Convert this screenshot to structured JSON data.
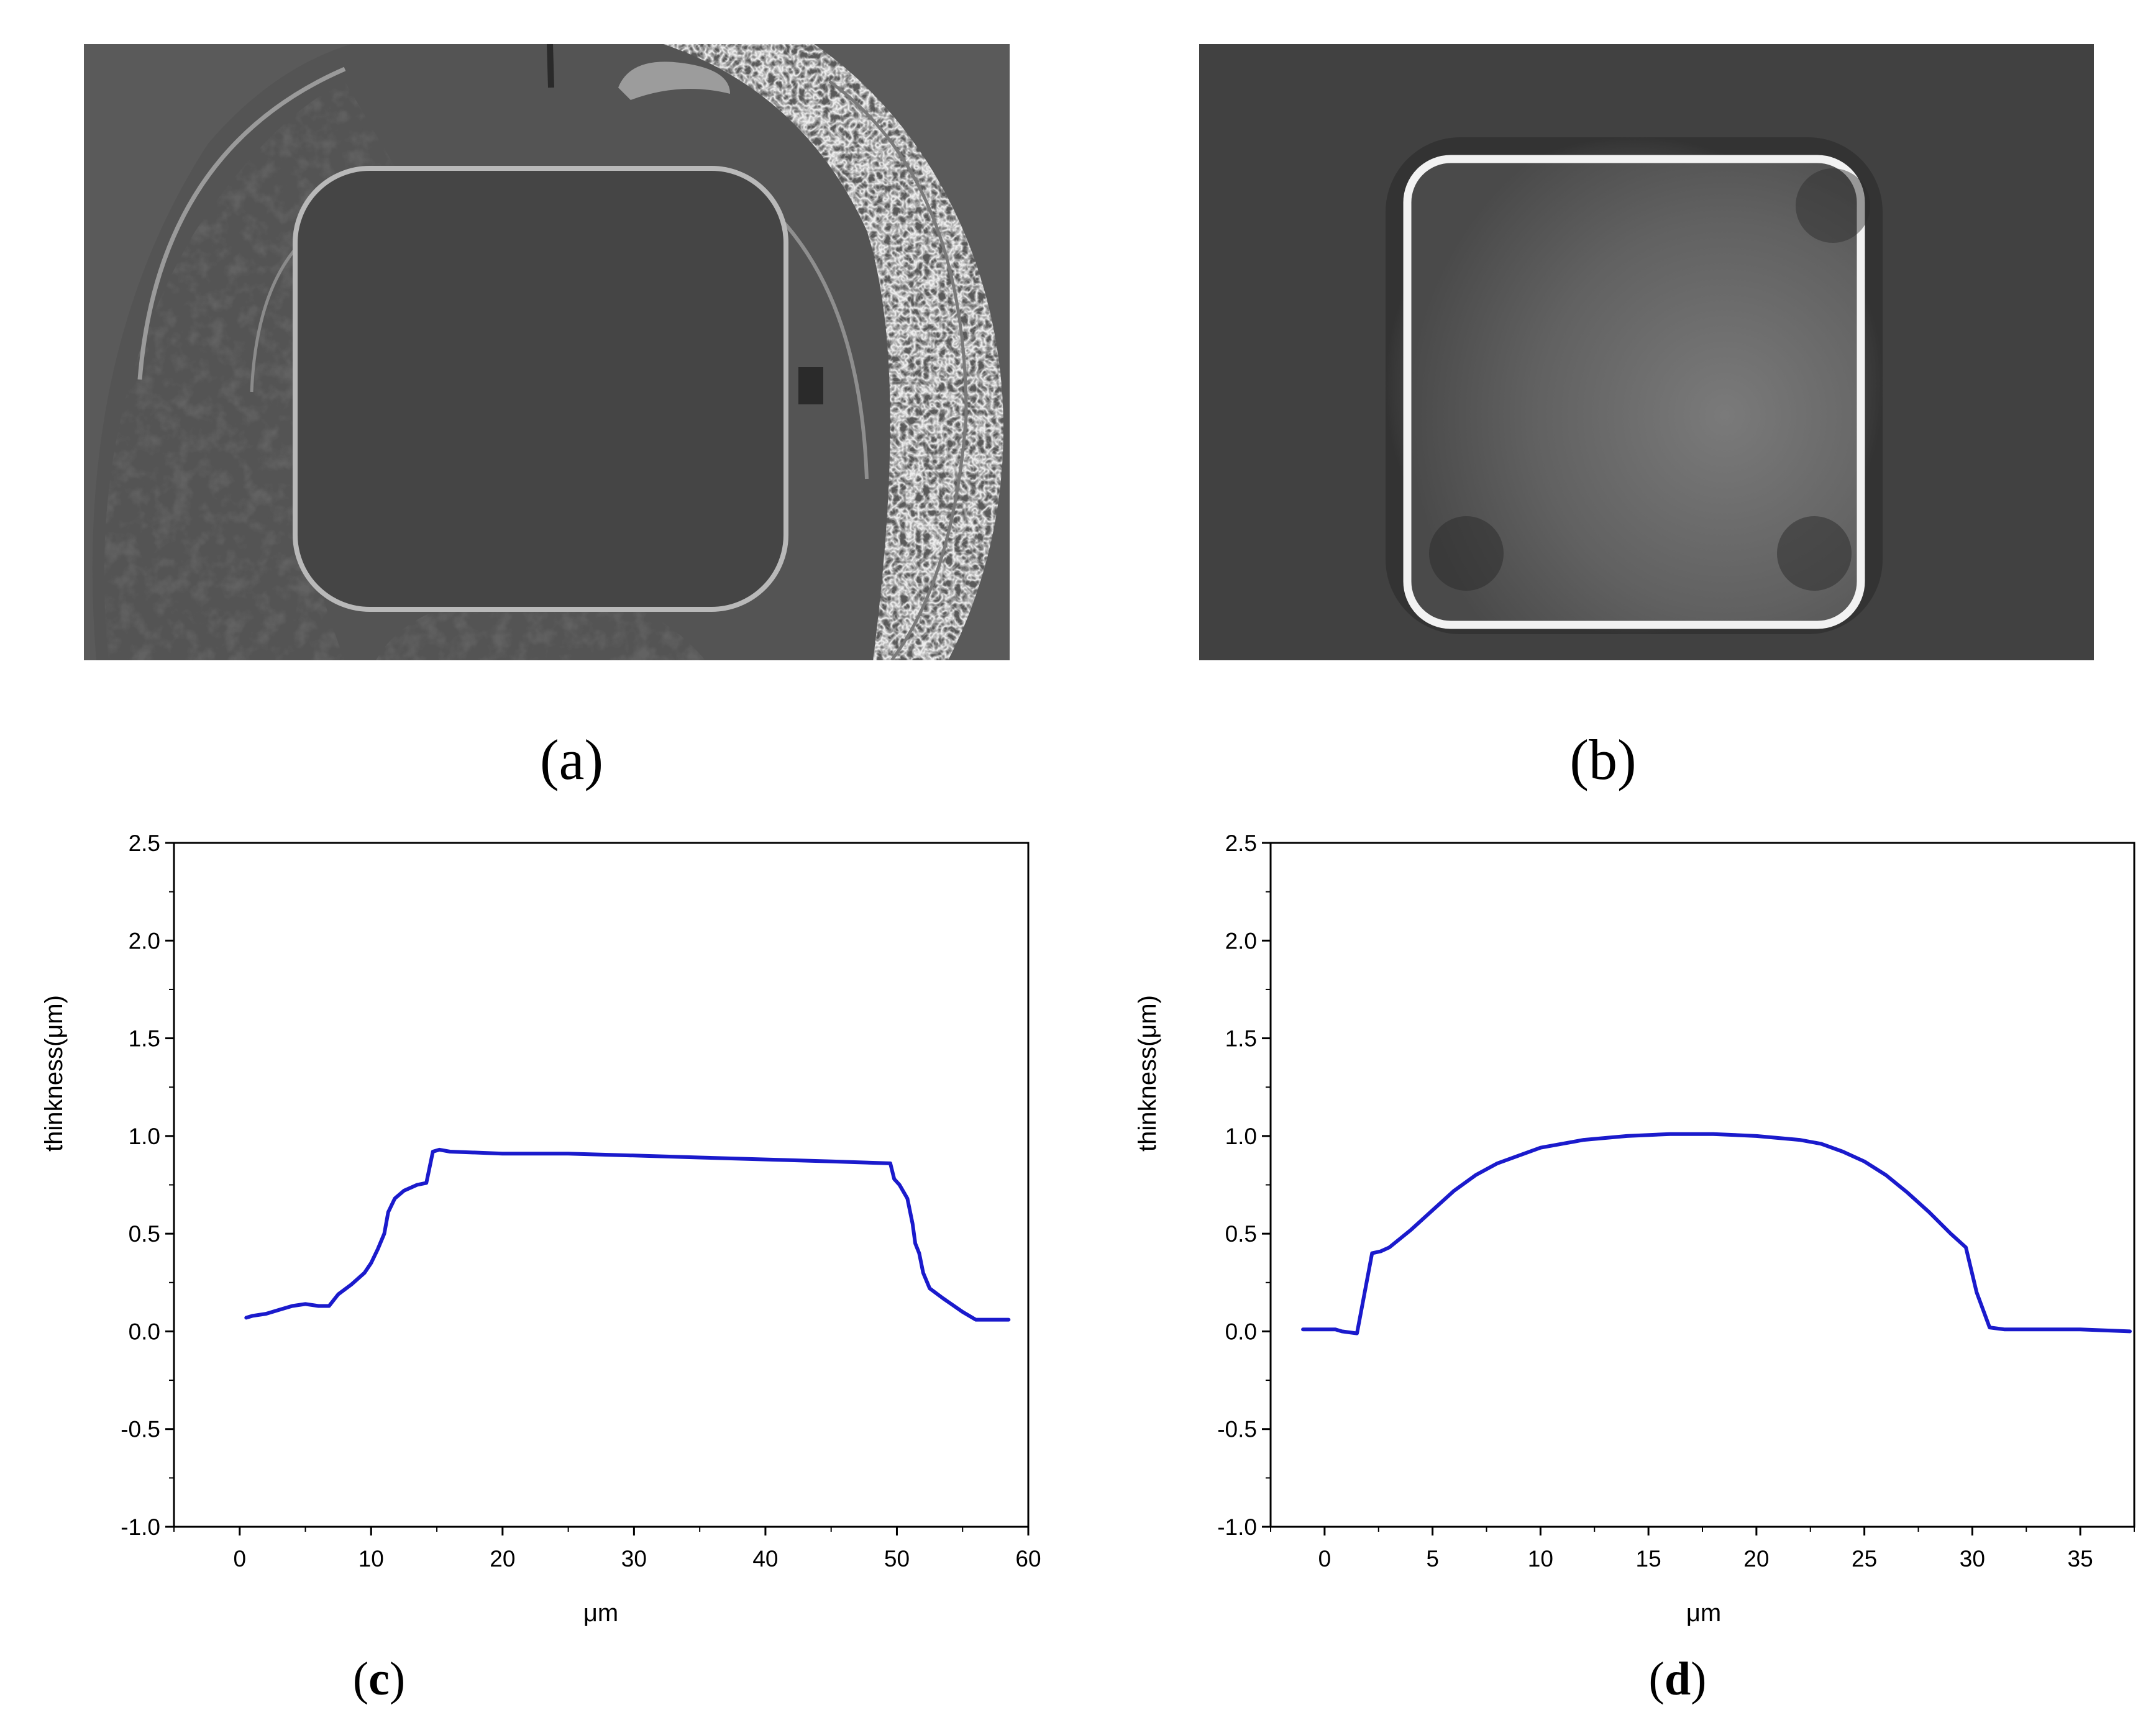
{
  "figure": {
    "captions": {
      "a": "(a)",
      "b": "(b)",
      "c_open": "(",
      "c_letter": "c",
      "c_close": ")",
      "d_open": "(",
      "d_letter": "d",
      "d_close": ")"
    }
  },
  "photos": {
    "a": {
      "background": "#5a5a5a",
      "pad_color": "#454545",
      "rim_color": "#b9b9b9",
      "texture_color": "#1f1f1f"
    },
    "b": {
      "background": "#414141",
      "pad_color": "#6a6a6a",
      "rim_color": "#f2f2f2"
    }
  },
  "chart_data": [
    {
      "type": "line",
      "title": "",
      "xlabel": "μm",
      "ylabel": "thinkness(μm)",
      "xlim": [
        -5,
        60
      ],
      "ylim": [
        -1.0,
        2.5
      ],
      "xticks": [
        0,
        10,
        20,
        30,
        40,
        50,
        60
      ],
      "yticks": [
        -1.0,
        -0.5,
        0.0,
        0.5,
        1.0,
        1.5,
        2.0,
        2.5
      ],
      "xtick_labels": [
        "0",
        "10",
        "20",
        "30",
        "40",
        "50",
        "60"
      ],
      "ytick_labels": [
        "-1.0",
        "-0.5",
        "0.0",
        "0.5",
        "1.0",
        "1.5",
        "2.0",
        "2.5"
      ],
      "grid": false,
      "line_color": "#1a1acc",
      "series": [
        {
          "x": [
            0.5,
            1,
            2,
            3,
            4,
            5,
            6,
            6.8,
            7.5,
            8.5,
            9.5,
            10,
            10.5,
            11,
            11.3,
            11.8,
            12.5,
            13.5,
            14.2,
            14.7,
            15.2,
            16,
            20,
            25,
            30,
            35,
            40,
            45,
            49.5,
            49.8,
            50.2,
            50.8,
            51.2,
            51.4,
            51.7,
            52,
            52.5,
            53.5,
            55,
            56,
            57,
            58.5
          ],
          "y": [
            0.07,
            0.08,
            0.09,
            0.11,
            0.13,
            0.14,
            0.13,
            0.13,
            0.19,
            0.24,
            0.3,
            0.35,
            0.42,
            0.5,
            0.61,
            0.68,
            0.72,
            0.75,
            0.76,
            0.92,
            0.93,
            0.92,
            0.91,
            0.91,
            0.9,
            0.89,
            0.88,
            0.87,
            0.86,
            0.78,
            0.75,
            0.68,
            0.55,
            0.45,
            0.4,
            0.3,
            0.22,
            0.17,
            0.1,
            0.06,
            0.06,
            0.06
          ]
        }
      ]
    },
    {
      "type": "line",
      "title": "",
      "xlabel": "μm",
      "ylabel": "thinkness(μm)",
      "xlim": [
        -2.5,
        37.5
      ],
      "ylim": [
        -1.0,
        2.5
      ],
      "xticks": [
        0,
        5,
        10,
        15,
        20,
        25,
        30,
        35
      ],
      "yticks": [
        -1.0,
        -0.5,
        0.0,
        0.5,
        1.0,
        1.5,
        2.0,
        2.5
      ],
      "xtick_labels": [
        "0",
        "5",
        "10",
        "15",
        "20",
        "25",
        "30",
        "35"
      ],
      "ytick_labels": [
        "-1.0",
        "-0.5",
        "0.0",
        "0.5",
        "1.0",
        "1.5",
        "2.0",
        "2.5"
      ],
      "grid": false,
      "line_color": "#1a1acc",
      "series": [
        {
          "x": [
            -1,
            0,
            0.5,
            0.8,
            1.5,
            2.2,
            2.6,
            3,
            4,
            5,
            6,
            7,
            8,
            10,
            12,
            14,
            16,
            18,
            20,
            22,
            23,
            24,
            25,
            26,
            27,
            28,
            29,
            29.7,
            30.2,
            30.8,
            31.5,
            33,
            35,
            37.3
          ],
          "y": [
            0.01,
            0.01,
            0.01,
            0.0,
            -0.01,
            0.4,
            0.41,
            0.43,
            0.52,
            0.62,
            0.72,
            0.8,
            0.86,
            0.94,
            0.98,
            1.0,
            1.01,
            1.01,
            1.0,
            0.98,
            0.96,
            0.92,
            0.87,
            0.8,
            0.71,
            0.61,
            0.5,
            0.43,
            0.2,
            0.02,
            0.01,
            0.01,
            0.01,
            0.0
          ]
        }
      ]
    }
  ]
}
